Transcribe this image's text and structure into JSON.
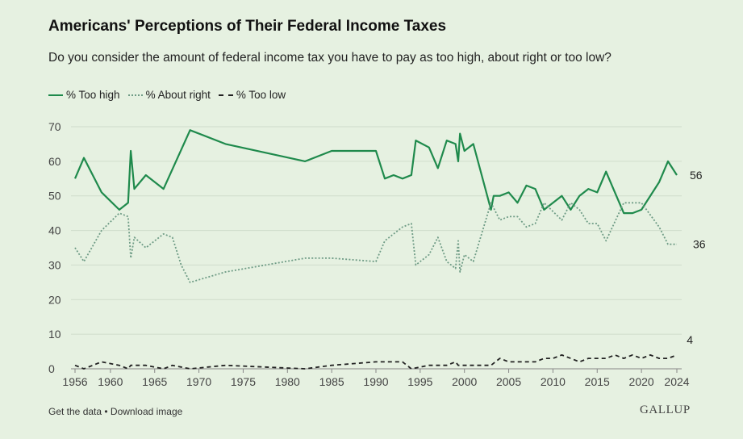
{
  "title": "Americans' Perceptions of Their Federal Income Taxes",
  "subtitle": "Do you consider the amount of federal income tax you have to pay as too high, about right or too low?",
  "footer": {
    "get_data": "Get the data",
    "separator": " • ",
    "download": "Download image"
  },
  "brand": "GALLUP",
  "colors": {
    "too_high": "#1f8a4c",
    "about_right": "#6f9c86",
    "too_low": "#222222",
    "grid": "#cfdccb",
    "axis": "#888888",
    "background": "#e6f1e1"
  },
  "chart_data": {
    "type": "line",
    "title": "Americans' Perceptions of Their Federal Income Taxes",
    "xlabel": "",
    "ylabel": "",
    "xlim": [
      1955.5,
      2024.3
    ],
    "ylim": [
      0,
      70
    ],
    "yticks": [
      0,
      10,
      20,
      30,
      40,
      50,
      60,
      70
    ],
    "xticks": [
      1956,
      1960,
      1965,
      1970,
      1975,
      1980,
      1985,
      1990,
      1995,
      2000,
      2005,
      2010,
      2015,
      2020,
      2024
    ],
    "grid": true,
    "legend_position": "top-left",
    "end_labels": {
      "too_high": "56",
      "about_right": "36",
      "too_low": "4"
    },
    "series": [
      {
        "name": "% Too high",
        "style": "solid",
        "points": [
          [
            1956,
            55
          ],
          [
            1957,
            61
          ],
          [
            1959,
            51
          ],
          [
            1961,
            46
          ],
          [
            1962,
            48
          ],
          [
            1962.3,
            63
          ],
          [
            1962.7,
            52
          ],
          [
            1964,
            56
          ],
          [
            1966,
            52
          ],
          [
            1969,
            69
          ],
          [
            1973,
            65
          ],
          [
            1982,
            60
          ],
          [
            1985,
            63
          ],
          [
            1990,
            63
          ],
          [
            1991,
            55
          ],
          [
            1992,
            56
          ],
          [
            1993,
            55
          ],
          [
            1994,
            56
          ],
          [
            1994.5,
            66
          ],
          [
            1996,
            64
          ],
          [
            1997,
            58
          ],
          [
            1998,
            66
          ],
          [
            1999,
            65
          ],
          [
            1999.3,
            60
          ],
          [
            1999.5,
            68
          ],
          [
            2000,
            63
          ],
          [
            2001,
            65
          ],
          [
            2003,
            46
          ],
          [
            2003.3,
            50
          ],
          [
            2004,
            50
          ],
          [
            2005,
            51
          ],
          [
            2006,
            48
          ],
          [
            2007,
            53
          ],
          [
            2008,
            52
          ],
          [
            2009,
            46
          ],
          [
            2011,
            50
          ],
          [
            2012,
            46
          ],
          [
            2013,
            50
          ],
          [
            2014,
            52
          ],
          [
            2015,
            51
          ],
          [
            2016,
            57
          ],
          [
            2018,
            45
          ],
          [
            2019,
            45
          ],
          [
            2020,
            46
          ],
          [
            2022,
            54
          ],
          [
            2023,
            60
          ],
          [
            2024,
            56
          ]
        ]
      },
      {
        "name": "% About right",
        "style": "dotted",
        "points": [
          [
            1956,
            35
          ],
          [
            1957,
            31
          ],
          [
            1959,
            40
          ],
          [
            1961,
            45
          ],
          [
            1962,
            44
          ],
          [
            1962.3,
            32
          ],
          [
            1962.7,
            38
          ],
          [
            1964,
            35
          ],
          [
            1966,
            39
          ],
          [
            1967,
            38
          ],
          [
            1968,
            30
          ],
          [
            1969,
            25
          ],
          [
            1973,
            28
          ],
          [
            1982,
            32
          ],
          [
            1985,
            32
          ],
          [
            1990,
            31
          ],
          [
            1991,
            37
          ],
          [
            1993,
            41
          ],
          [
            1994,
            42
          ],
          [
            1994.5,
            30
          ],
          [
            1996,
            33
          ],
          [
            1997,
            38
          ],
          [
            1998,
            31
          ],
          [
            1999,
            29
          ],
          [
            1999.3,
            37
          ],
          [
            1999.5,
            28
          ],
          [
            2000,
            33
          ],
          [
            2001,
            31
          ],
          [
            2003,
            48
          ],
          [
            2004,
            43
          ],
          [
            2005,
            44
          ],
          [
            2006,
            44
          ],
          [
            2007,
            41
          ],
          [
            2008,
            42
          ],
          [
            2009,
            48
          ],
          [
            2011,
            43
          ],
          [
            2012,
            48
          ],
          [
            2013,
            46
          ],
          [
            2014,
            42
          ],
          [
            2015,
            42
          ],
          [
            2016,
            37
          ],
          [
            2018,
            48
          ],
          [
            2019,
            48
          ],
          [
            2020,
            48
          ],
          [
            2022,
            41
          ],
          [
            2023,
            36
          ],
          [
            2024,
            36
          ]
        ]
      },
      {
        "name": "% Too low",
        "style": "dashed",
        "points": [
          [
            1956,
            1
          ],
          [
            1957,
            0
          ],
          [
            1959,
            2
          ],
          [
            1961,
            1
          ],
          [
            1962,
            0
          ],
          [
            1962.3,
            1
          ],
          [
            1964,
            1
          ],
          [
            1966,
            0
          ],
          [
            1967,
            1
          ],
          [
            1969,
            0
          ],
          [
            1973,
            1
          ],
          [
            1982,
            0
          ],
          [
            1985,
            1
          ],
          [
            1990,
            2
          ],
          [
            1993,
            2
          ],
          [
            1994,
            0
          ],
          [
            1996,
            1
          ],
          [
            1998,
            1
          ],
          [
            1999,
            2
          ],
          [
            1999.3,
            1
          ],
          [
            1999.5,
            1
          ],
          [
            2000,
            1
          ],
          [
            2003,
            1
          ],
          [
            2004,
            3
          ],
          [
            2005,
            2
          ],
          [
            2006,
            2
          ],
          [
            2008,
            2
          ],
          [
            2009,
            3
          ],
          [
            2010,
            3
          ],
          [
            2011,
            4
          ],
          [
            2012,
            3
          ],
          [
            2013,
            2
          ],
          [
            2014,
            3
          ],
          [
            2015,
            3
          ],
          [
            2016,
            3
          ],
          [
            2017,
            4
          ],
          [
            2018,
            3
          ],
          [
            2019,
            4
          ],
          [
            2020,
            3
          ],
          [
            2021,
            4
          ],
          [
            2022,
            3
          ],
          [
            2023,
            3
          ],
          [
            2024,
            4
          ]
        ]
      }
    ]
  }
}
